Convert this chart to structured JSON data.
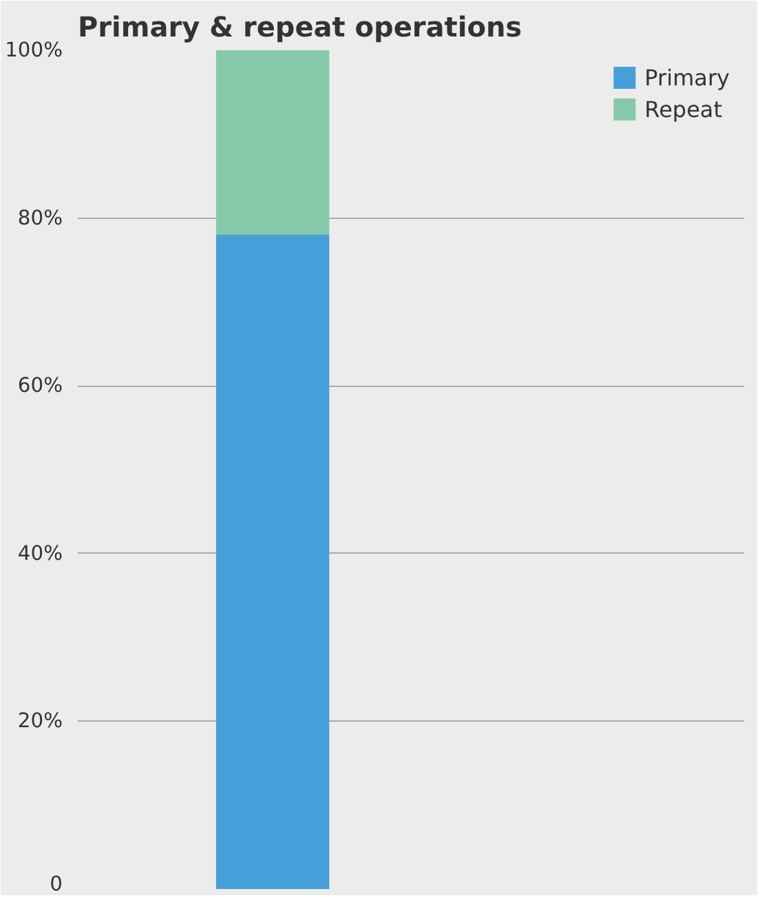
{
  "chart_data": {
    "type": "bar",
    "title": "Primary & repeat operations",
    "categories": [
      null
    ],
    "stacked": true,
    "series": [
      {
        "name": "Primary",
        "color": "#469fd9",
        "values": [
          78
        ]
      },
      {
        "name": "Repeat",
        "color": "#86c8aa",
        "values": [
          22
        ]
      }
    ],
    "ylim": [
      0,
      100
    ],
    "yticks": [
      {
        "value": 0,
        "label": "0"
      },
      {
        "value": 20,
        "label": "20%"
      },
      {
        "value": 40,
        "label": "40%"
      },
      {
        "value": 60,
        "label": "60%"
      },
      {
        "value": 80,
        "label": "80%"
      },
      {
        "value": 100,
        "label": "100%"
      }
    ],
    "grid": "y",
    "legend": "top right"
  }
}
